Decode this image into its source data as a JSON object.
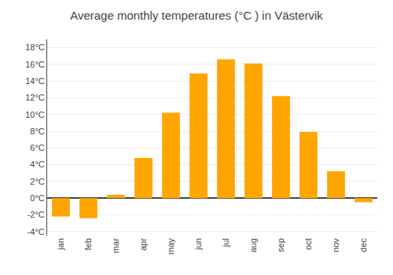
{
  "chart_data": {
    "type": "bar",
    "title": "Average monthly temperatures (°C ) in Västervik",
    "categories": [
      "jan",
      "feb",
      "mar",
      "apr",
      "may",
      "jun",
      "jul",
      "aug",
      "sep",
      "oct",
      "nov",
      "dec"
    ],
    "values": [
      -2.2,
      -2.4,
      0.4,
      4.8,
      10.2,
      14.9,
      16.6,
      16.1,
      12.2,
      7.9,
      3.2,
      -0.5
    ],
    "color": "#FFA500",
    "ylim": [
      -4.5,
      19
    ],
    "yticks": [
      {
        "value": -4,
        "label": "-4°C"
      },
      {
        "value": -2,
        "label": "-2°C"
      },
      {
        "value": 0,
        "label": "0°C"
      },
      {
        "value": 2,
        "label": "2°C"
      },
      {
        "value": 4,
        "label": "4°C"
      },
      {
        "value": 6,
        "label": "6°C"
      },
      {
        "value": 8,
        "label": "8°C"
      },
      {
        "value": 10,
        "label": "10°C"
      },
      {
        "value": 12,
        "label": "12°C"
      },
      {
        "value": 14,
        "label": "14°C"
      },
      {
        "value": 16,
        "label": "16°C"
      },
      {
        "value": 18,
        "label": "18°C"
      }
    ],
    "grid": true
  }
}
